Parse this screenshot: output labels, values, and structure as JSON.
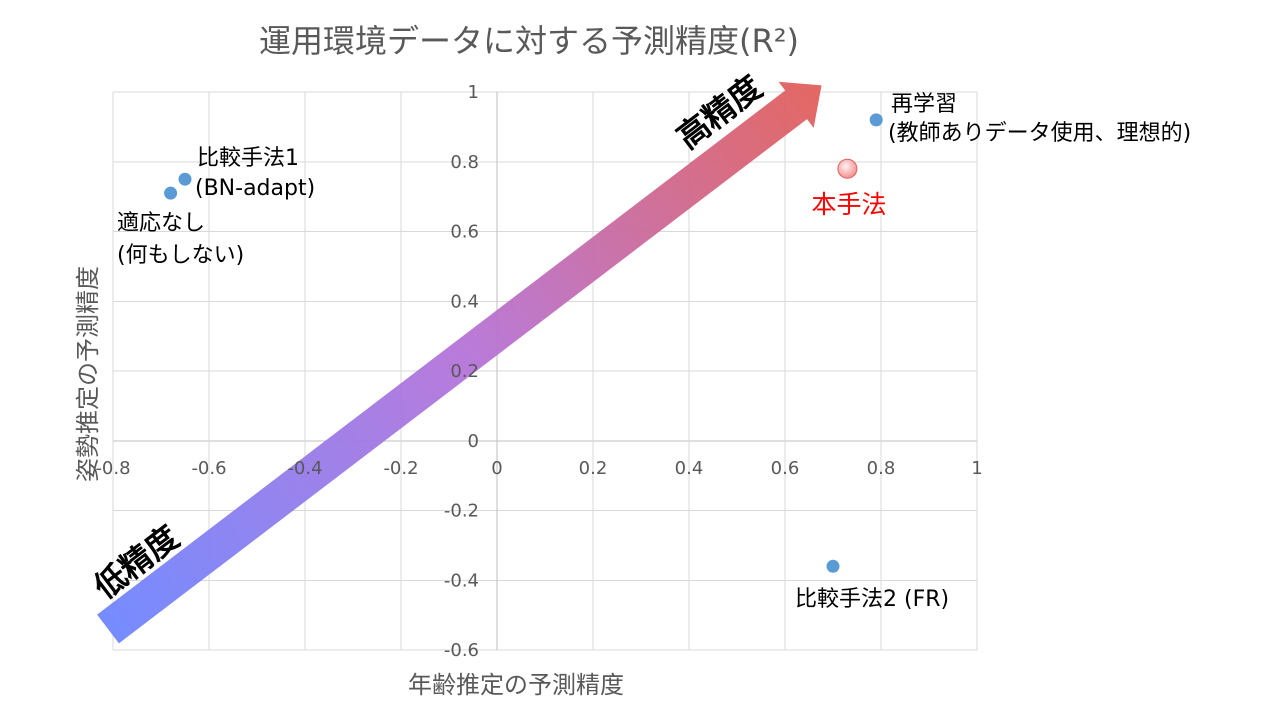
{
  "chart_data": {
    "type": "scatter",
    "title": "運用環境データに対する予測精度(R²)",
    "xlabel": "年齢推定の予測精度",
    "ylabel": "姿勢推定の予測精度",
    "xlim": [
      -0.8,
      1
    ],
    "ylim": [
      -0.6,
      1
    ],
    "xtick_labels": [
      "-0.8",
      "-0.6",
      "-0.4",
      "-0.2",
      "0",
      "0.2",
      "0.4",
      "0.6",
      "0.8",
      "1"
    ],
    "ytick_labels": [
      "1",
      "0.8",
      "0.6",
      "0.4",
      "0.2",
      "0",
      "-0.2",
      "-0.4",
      "-0.6"
    ],
    "grid": true,
    "points": [
      {
        "label": [
          "比較手法1",
          "(BN-adapt)"
        ],
        "x": -0.65,
        "y": 0.75,
        "color": "#5B9BD5",
        "label_color": "#000000"
      },
      {
        "label": [
          "適応なし",
          "(何もしない)"
        ],
        "x": -0.68,
        "y": 0.71,
        "color": "#5B9BD5",
        "label_color": "#000000"
      },
      {
        "label": [
          "再学習",
          "(教師ありデータ使用、理想的)"
        ],
        "x": 0.79,
        "y": 0.92,
        "color": "#5B9BD5",
        "label_color": "#000000"
      },
      {
        "label": [
          "本手法"
        ],
        "x": 0.73,
        "y": 0.78,
        "color": "#F28B8B",
        "label_color": "#FF0000"
      },
      {
        "label": [
          "比較手法2 (FR)"
        ],
        "x": 0.7,
        "y": -0.36,
        "color": "#5B9BD5",
        "label_color": "#000000"
      }
    ],
    "annotations": {
      "arrow_high_end": "高精度",
      "arrow_low_end": "低精度"
    }
  },
  "colors": {
    "text": "#595959",
    "grid": "#D9D9D9",
    "axis": "#BFBFBF",
    "series_point": "#5B9BD5",
    "arrow_start": "#6E86FF",
    "arrow_mid": "#B574D9",
    "arrow_end": "#E2605A"
  }
}
